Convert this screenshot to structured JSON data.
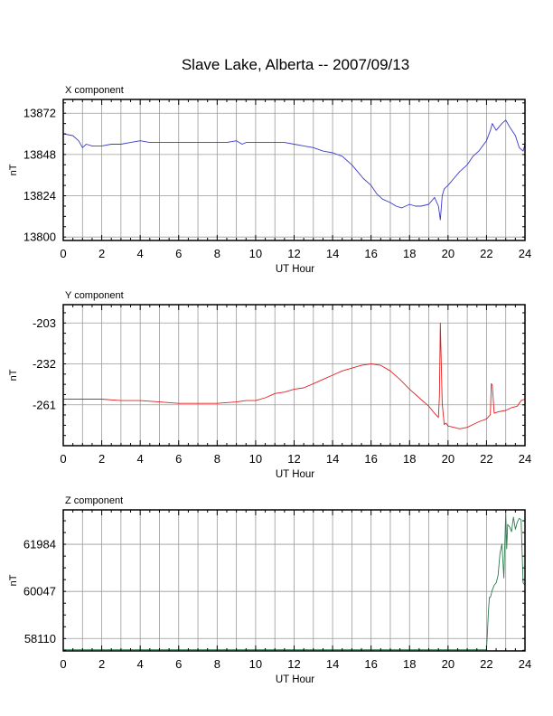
{
  "page": {
    "title": "Slave Lake, Alberta -- 2007/09/13"
  },
  "chart_data": [
    {
      "type": "line",
      "panel_label": "X component",
      "xlabel": "UT Hour",
      "ylabel": "nT",
      "xlim": [
        0,
        24
      ],
      "ylim": [
        13798,
        13880
      ],
      "xticks": [
        "0",
        "2",
        "4",
        "6",
        "8",
        "10",
        "12",
        "14",
        "16",
        "18",
        "20",
        "22",
        "24"
      ],
      "yticks": [
        "13800",
        "13824",
        "13848",
        "13872"
      ],
      "color": "#3a3acc",
      "grid": true,
      "series": [
        {
          "x": [
            0,
            0.5,
            0.8,
            1.0,
            1.2,
            1.5,
            2,
            2.5,
            3,
            3.5,
            4,
            4.5,
            5,
            5.5,
            6,
            6.5,
            7,
            7.5,
            8,
            8.5,
            9,
            9.3,
            9.5,
            10,
            10.5,
            11,
            11.5,
            12,
            12.5,
            13,
            13.5,
            14,
            14.5,
            15,
            15.3,
            15.6,
            16,
            16.3,
            16.6,
            17,
            17.3,
            17.6,
            18,
            18.3,
            18.6,
            19,
            19.3,
            19.5,
            19.6,
            19.7,
            19.8,
            20,
            20.3,
            20.6,
            21,
            21.3,
            21.6,
            22,
            22.2,
            22.3,
            22.5,
            22.8,
            23,
            23.2,
            23.5,
            23.7,
            23.9,
            24
          ],
          "y": [
            13860,
            13859,
            13856,
            13852,
            13854,
            13853,
            13853,
            13854,
            13854,
            13855,
            13856,
            13855,
            13855,
            13855,
            13855,
            13855,
            13855,
            13855,
            13855,
            13855,
            13856,
            13854,
            13855,
            13855,
            13855,
            13855,
            13855,
            13854,
            13853,
            13852,
            13850,
            13849,
            13847,
            13842,
            13838,
            13834,
            13830,
            13825,
            13822,
            13820,
            13818,
            13817,
            13819,
            13818,
            13818,
            13819,
            13823,
            13818,
            13810,
            13824,
            13828,
            13830,
            13834,
            13838,
            13842,
            13847,
            13850,
            13856,
            13862,
            13866,
            13862,
            13866,
            13868,
            13864,
            13859,
            13852,
            13850,
            13854
          ]
        }
      ]
    },
    {
      "type": "line",
      "panel_label": "Y component",
      "xlabel": "UT Hour",
      "ylabel": "nT",
      "xlim": [
        0,
        24
      ],
      "ylim": [
        -290,
        -190
      ],
      "xticks": [
        "0",
        "2",
        "4",
        "6",
        "8",
        "10",
        "12",
        "14",
        "16",
        "18",
        "20",
        "22",
        "24"
      ],
      "yticks": [
        "-203",
        "-232",
        "-261"
      ],
      "color": "#e02020",
      "grid": true,
      "series": [
        {
          "x": [
            0,
            1,
            2,
            3,
            4,
            5,
            6,
            7,
            8,
            9,
            9.5,
            10,
            10.5,
            11,
            11.5,
            12,
            12.5,
            13,
            13.5,
            14,
            14.5,
            15,
            15.5,
            16,
            16.5,
            17,
            17.5,
            18,
            18.5,
            19,
            19.3,
            19.5,
            19.55,
            19.6,
            19.7,
            19.8,
            19.9,
            20,
            20.3,
            20.6,
            21,
            21.3,
            21.6,
            22,
            22.2,
            22.25,
            22.3,
            22.4,
            22.6,
            23,
            23.3,
            23.6,
            23.8,
            24
          ],
          "y": [
            -257,
            -257,
            -257,
            -258,
            -258,
            -259,
            -260,
            -260,
            -260,
            -259,
            -258,
            -258,
            -256,
            -253,
            -252,
            -250,
            -249,
            -246,
            -243,
            -240,
            -237,
            -235,
            -233,
            -232,
            -233,
            -237,
            -243,
            -250,
            -256,
            -262,
            -267,
            -270,
            -255,
            -203,
            -260,
            -275,
            -274,
            -276,
            -277,
            -278,
            -277,
            -275,
            -273,
            -271,
            -268,
            -246,
            -247,
            -267,
            -266,
            -265,
            -263,
            -262,
            -258,
            -257
          ]
        }
      ]
    },
    {
      "type": "line",
      "panel_label": "Z component",
      "xlabel": "UT Hour",
      "ylabel": "nT",
      "xlim": [
        0,
        24
      ],
      "ylim": [
        57600,
        63400
      ],
      "xticks": [
        "0",
        "2",
        "4",
        "6",
        "8",
        "10",
        "12",
        "14",
        "16",
        "18",
        "20",
        "22",
        "24"
      ],
      "yticks": [
        "58110",
        "60047",
        "61984"
      ],
      "color": "#2e7d50",
      "grid": true,
      "series": [
        {
          "x": [
            0,
            4,
            8,
            12,
            16,
            20,
            22.0,
            22.05,
            22.1,
            22.15,
            22.2,
            22.3,
            22.4,
            22.5,
            22.6,
            22.7,
            22.8,
            22.9,
            23.0,
            23.05,
            23.1,
            23.2,
            23.3,
            23.4,
            23.5,
            23.6,
            23.7,
            23.8,
            23.9,
            24.0
          ],
          "y": [
            57650,
            57650,
            57650,
            57650,
            57650,
            57650,
            57650,
            58400,
            59200,
            59800,
            59800,
            60100,
            60300,
            60400,
            60700,
            61600,
            62000,
            60600,
            63300,
            61800,
            62800,
            62700,
            62500,
            63100,
            62600,
            62900,
            63050,
            63000,
            60400,
            60300
          ]
        }
      ]
    }
  ]
}
